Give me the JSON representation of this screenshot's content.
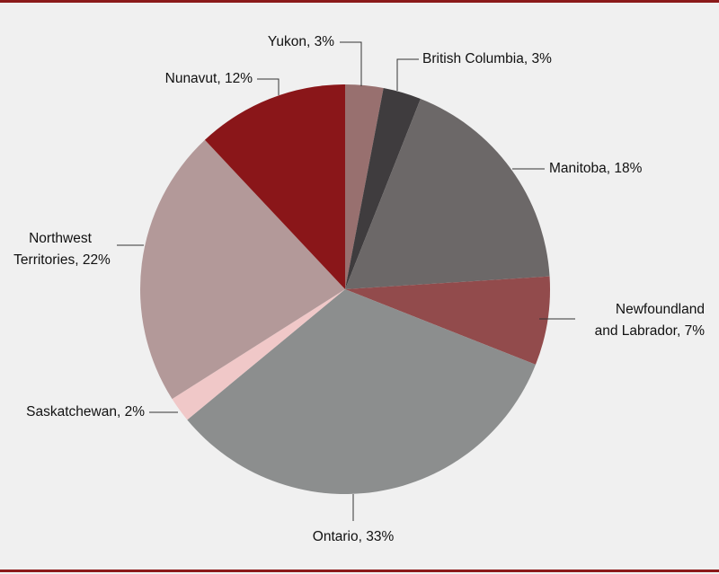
{
  "chart_data": {
    "type": "pie",
    "categories": [
      "Yukon",
      "British Columbia",
      "Manitoba",
      "Newfoundland and Labrador",
      "Ontario",
      "Saskatchewan",
      "Northwest Territories",
      "Nunavut"
    ],
    "values": [
      3,
      3,
      18,
      7,
      33,
      2,
      22,
      12
    ],
    "value_labels": [
      "Yukon, 3%",
      "British Columbia, 3%",
      "Manitoba, 18%",
      "Newfoundland and Labrador, 7%",
      "Ontario, 33%",
      "Saskatchewan, 2%",
      "Northwest Territories, 22%",
      "Nunavut, 12%"
    ],
    "colors": [
      "#98706f",
      "#3f3c3e",
      "#6c6868",
      "#924b4c",
      "#8c8e8e",
      "#f0c8c8",
      "#b39999",
      "#8a1619"
    ]
  }
}
